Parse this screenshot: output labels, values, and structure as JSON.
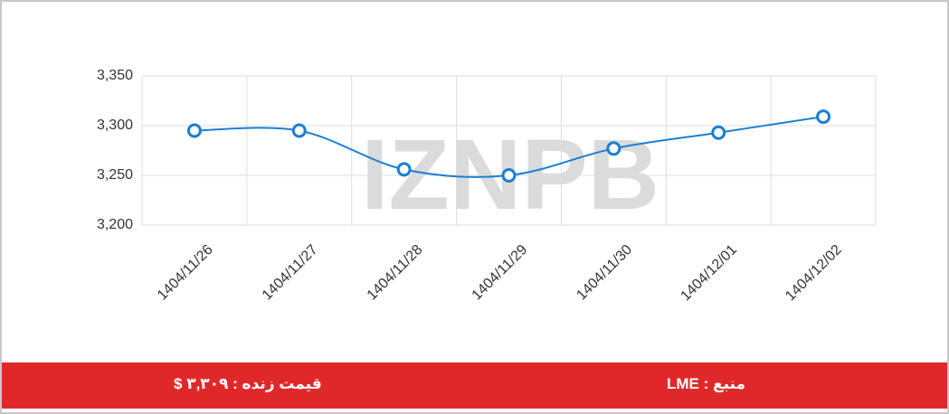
{
  "chart_data": {
    "type": "line",
    "categories": [
      "1404/11/26",
      "1404/11/27",
      "1404/11/28",
      "1404/11/29",
      "1404/11/30",
      "1404/12/01",
      "1404/12/02"
    ],
    "values": [
      3295,
      3295,
      3256,
      3250,
      3277,
      3293,
      3309
    ],
    "color": "#1a7fd4",
    "ylim": [
      3200,
      3350
    ],
    "yticks": [
      {
        "value": 3200,
        "label": "3,200"
      },
      {
        "value": 3250,
        "label": "3,250"
      },
      {
        "value": 3300,
        "label": "3,300"
      },
      {
        "value": 3350,
        "label": "3,350"
      }
    ],
    "grid": true,
    "watermark": "IZNPB"
  },
  "footer": {
    "live_price": "قیمت زنده : ۳,۳۰۹ $",
    "source": "منبع : LME"
  }
}
